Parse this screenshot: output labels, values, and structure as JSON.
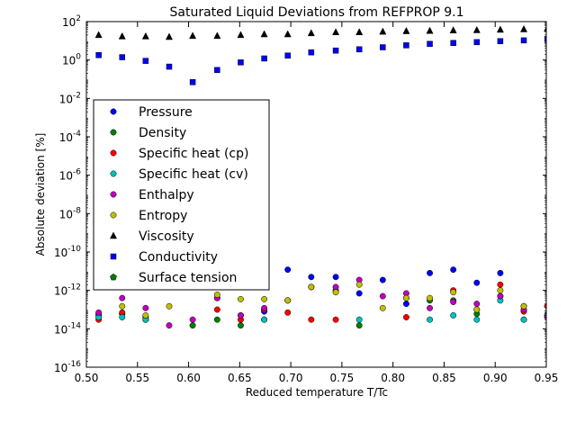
{
  "chart_data": {
    "type": "scatter",
    "title": "Saturated Liquid Deviations from REFPROP 9.1",
    "xlabel": "Reduced temperature T/Tc",
    "ylabel": "Absolute deviation [%]",
    "xlim": [
      0.5,
      0.95
    ],
    "ylim_exp": [
      -16,
      2
    ],
    "yscale": "log",
    "grid": false,
    "legend_position": "middle-left",
    "x_ticks": [
      0.5,
      0.55,
      0.6,
      0.65,
      0.7,
      0.75,
      0.8,
      0.85,
      0.9,
      0.95
    ],
    "x_tick_labels": [
      "0.50",
      "0.55",
      "0.60",
      "0.65",
      "0.70",
      "0.75",
      "0.80",
      "0.85",
      "0.90",
      "0.95"
    ],
    "y_tick_exps": [
      -16,
      -14,
      -12,
      -10,
      -8,
      -6,
      -4,
      -2,
      0,
      2
    ],
    "y_tick_labels": [
      {
        "base": "10",
        "exp": "-16"
      },
      {
        "base": "10",
        "exp": "-14"
      },
      {
        "base": "10",
        "exp": "-12"
      },
      {
        "base": "10",
        "exp": "-10"
      },
      {
        "base": "10",
        "exp": "-8"
      },
      {
        "base": "10",
        "exp": "-6"
      },
      {
        "base": "10",
        "exp": "-4"
      },
      {
        "base": "10",
        "exp": "-2"
      },
      {
        "base": "10",
        "exp": "0"
      },
      {
        "base": "10",
        "exp": "2"
      }
    ],
    "x": [
      0.512,
      0.535,
      0.558,
      0.581,
      0.604,
      0.628,
      0.651,
      0.674,
      0.697,
      0.72,
      0.744,
      0.767,
      0.79,
      0.813,
      0.836,
      0.859,
      0.882,
      0.905,
      0.928,
      0.951
    ],
    "series": [
      {
        "name": "Pressure",
        "marker": "circle",
        "color": "#0000ff",
        "y": [
          5e-14,
          6e-14,
          4e-14,
          null,
          null,
          4e-13,
          5e-14,
          8e-14,
          1.2e-11,
          5e-12,
          5e-12,
          7e-13,
          3.5e-12,
          2e-13,
          8e-12,
          1.2e-11,
          2.5e-12,
          8e-12,
          1.5e-13,
          1.5e-13
        ]
      },
      {
        "name": "Density",
        "marker": "circle",
        "color": "#007f00",
        "y": [
          6e-14,
          6e-14,
          3e-14,
          null,
          1.5e-14,
          3e-14,
          1.5e-14,
          3e-14,
          3e-13,
          1.5e-12,
          1e-12,
          1.5e-14,
          null,
          4e-13,
          3e-13,
          3e-13,
          6e-14,
          5e-13,
          3e-14,
          5e-14
        ]
      },
      {
        "name": "Specific heat (cp)",
        "marker": "circle",
        "color": "#ff0000",
        "y": [
          3e-14,
          7e-14,
          3e-14,
          null,
          null,
          1e-13,
          3e-14,
          1e-13,
          7e-14,
          3e-14,
          3e-14,
          null,
          null,
          4e-14,
          null,
          1e-12,
          1e-13,
          2e-12,
          8e-14,
          1.5e-13
        ]
      },
      {
        "name": "Specific heat (cv)",
        "marker": "circle",
        "color": "#00bfbf",
        "y": [
          4e-14,
          4e-14,
          3e-14,
          null,
          null,
          null,
          null,
          3e-14,
          null,
          null,
          null,
          3e-14,
          null,
          null,
          3e-14,
          5e-14,
          3e-14,
          3e-13,
          3e-14,
          5e-14
        ]
      },
      {
        "name": "Enthalpy",
        "marker": "circle",
        "color": "#bf00bf",
        "y": [
          7e-14,
          4e-13,
          1.2e-13,
          1.5e-14,
          3e-14,
          4e-13,
          5e-14,
          1.2e-13,
          3e-13,
          1.5e-12,
          1.5e-12,
          3.5e-12,
          5e-13,
          7e-13,
          1.2e-13,
          2.5e-13,
          2e-13,
          5e-13,
          1e-13,
          4e-14
        ]
      },
      {
        "name": "Entropy",
        "marker": "circle",
        "color": "#bfbf00",
        "y": [
          null,
          1.5e-13,
          5e-14,
          1.5e-13,
          null,
          6e-13,
          3.5e-13,
          3.5e-13,
          3e-13,
          1.5e-12,
          8e-13,
          2e-12,
          1.2e-13,
          4e-13,
          4e-13,
          8e-13,
          1e-13,
          1e-12,
          1.5e-13,
          null
        ]
      },
      {
        "name": "Viscosity",
        "marker": "triangle",
        "color": "#000000",
        "y": [
          20,
          17,
          17,
          16,
          18,
          18,
          20,
          22,
          22,
          25,
          28,
          28,
          30,
          32,
          33,
          35,
          36,
          38,
          40,
          42
        ]
      },
      {
        "name": "Conductivity",
        "marker": "square",
        "color": "#0000ff",
        "y": [
          1.8,
          1.4,
          0.9,
          0.45,
          0.07,
          0.3,
          0.75,
          1.2,
          1.7,
          2.5,
          3.1,
          3.6,
          4.6,
          5.8,
          6.9,
          7.7,
          8.5,
          9.6,
          10.5,
          12.3
        ]
      },
      {
        "name": "Surface tension",
        "marker": "pentagon",
        "color": "#007f00",
        "y": []
      }
    ]
  }
}
